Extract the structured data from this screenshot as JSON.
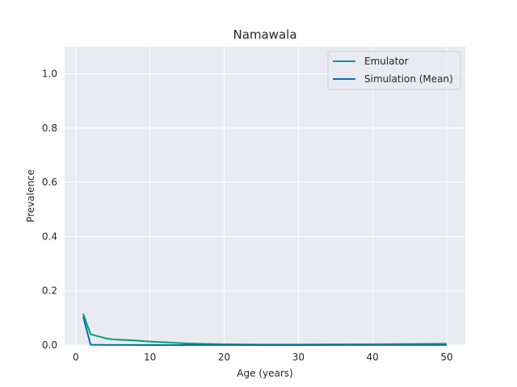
{
  "chart_data": {
    "type": "line",
    "title": "Namawala",
    "xlabel": "Age (years)",
    "ylabel": "Prevalence",
    "xlim": [
      -1.5,
      52.5
    ],
    "ylim": [
      0,
      1.1
    ],
    "xticks": [
      0,
      10,
      20,
      30,
      40,
      50
    ],
    "yticks": [
      0.0,
      0.2,
      0.4,
      0.6,
      0.8,
      1.0
    ],
    "xtick_labels": [
      "0",
      "10",
      "20",
      "30",
      "40",
      "50"
    ],
    "ytick_labels": [
      "0.0",
      "0.2",
      "0.4",
      "0.6",
      "0.8",
      "1.0"
    ],
    "grid": true,
    "legend_position": "top-right",
    "background_color": "#eaeaf2",
    "series": [
      {
        "name": "Emulator",
        "color": "#009e73",
        "x": [
          1,
          2,
          4,
          5,
          7.5,
          10,
          15,
          20,
          25,
          30,
          40,
          50
        ],
        "y": [
          0.115,
          0.04,
          0.025,
          0.021,
          0.018,
          0.013,
          0.006,
          0.003,
          0.002,
          0.002,
          0.003,
          0.005
        ]
      },
      {
        "name": "Simulation (Mean)",
        "color": "#0072b2",
        "x": [
          1,
          2,
          4,
          5,
          7.5,
          10,
          15,
          20,
          25,
          30,
          40,
          50
        ],
        "y": [
          0.105,
          0.001,
          0.0005,
          0.0003,
          0.0002,
          0.0001,
          0.0001,
          0.0001,
          0.0001,
          0.0001,
          0.0002,
          0.0002
        ]
      }
    ]
  }
}
